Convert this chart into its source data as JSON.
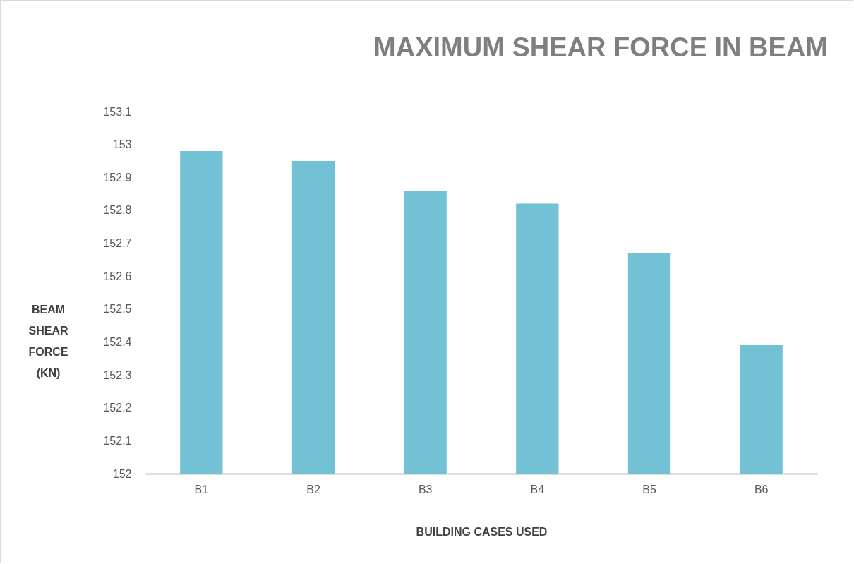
{
  "chart_data": {
    "type": "bar",
    "title": "MAXIMUM SHEAR FORCE IN BEAM",
    "xlabel": "BUILDING CASES USED",
    "ylabel": "BEAM SHEAR FORCE (KN)",
    "categories": [
      "B1",
      "B2",
      "B3",
      "B4",
      "B5",
      "B6"
    ],
    "values": [
      152.98,
      152.95,
      152.86,
      152.82,
      152.67,
      152.39
    ],
    "color": "#72c1d4",
    "ylim": [
      152,
      153.1
    ],
    "yticks": [
      152,
      152.1,
      152.2,
      152.3,
      152.4,
      152.5,
      152.6,
      152.7,
      152.8,
      152.9,
      153,
      153.1
    ],
    "grid": false
  }
}
